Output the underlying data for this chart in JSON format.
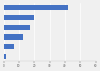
{
  "values": [
    42000,
    20000,
    17000,
    12500,
    6500,
    1800
  ],
  "bar_color": "#4472c4",
  "background_color": "#f0f0f0",
  "plot_bg_color": "#f0f0f0",
  "xlim": [
    0,
    60000
  ],
  "bar_height": 0.55,
  "grid_color": "#ffffff",
  "tick_color": "#555555",
  "spine_color": "#cccccc",
  "xticks": [
    0,
    10000,
    20000,
    30000,
    40000,
    50000,
    60000
  ],
  "xticklabels": [
    "0",
    "10",
    "20",
    "30",
    "40",
    "50",
    "60"
  ]
}
